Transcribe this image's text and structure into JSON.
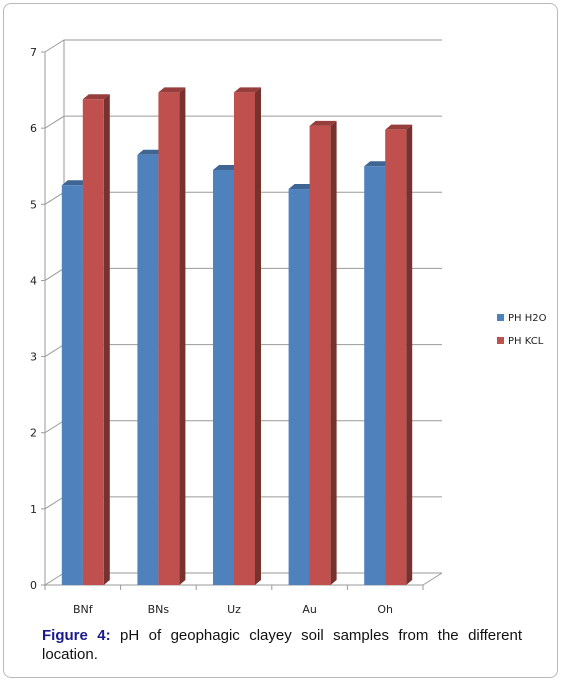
{
  "chart_data": {
    "type": "bar",
    "categories": [
      "BNf",
      "BNs",
      "Uz",
      "Au",
      "Oh"
    ],
    "series": [
      {
        "name": "PH H2O",
        "color": "#4f81bd",
        "values": [
          5.25,
          5.65,
          5.45,
          5.2,
          5.5
        ]
      },
      {
        "name": "PH KCL",
        "color": "#c0504d",
        "values": [
          6.38,
          6.47,
          6.47,
          6.03,
          5.98
        ]
      }
    ],
    "ylim": [
      0,
      7
    ],
    "yticks": [
      "0",
      "1",
      "2",
      "3",
      "4",
      "5",
      "6",
      "7"
    ],
    "grid": true,
    "legend_position": "right",
    "style": "3d-clustered-column"
  },
  "caption": {
    "label": "Figure 4:",
    "text": " pH of geophagic clayey soil samples from the different location."
  }
}
